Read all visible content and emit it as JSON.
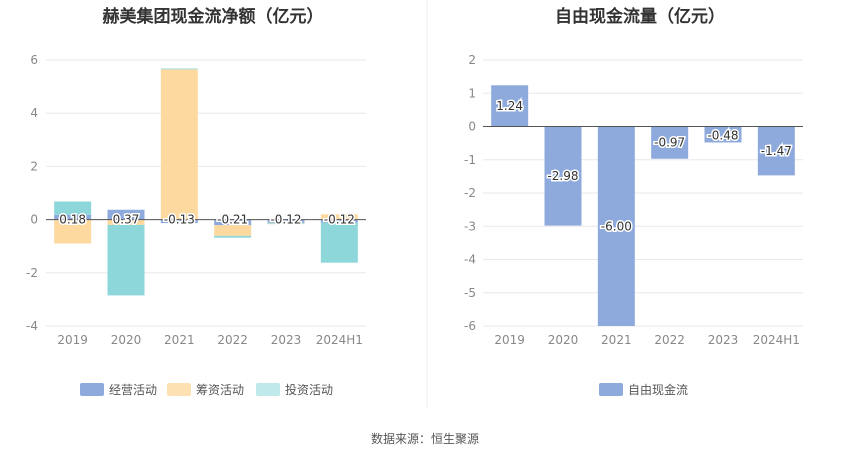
{
  "source_text": "数据来源：恒生聚源",
  "colors": {
    "operating": "#8eaadc",
    "financing": "#fdd9a0",
    "investing": "#8dd7da",
    "fcf": "#8eaadc",
    "grid": "#e8e8ee",
    "axis_text": "#888888",
    "title": "#333333",
    "divider": "#eeeeee"
  },
  "chart_data": [
    {
      "type": "bar",
      "title": "赫美集团现金流净额（亿元）",
      "categories": [
        "2019",
        "2020",
        "2021",
        "2022",
        "2023",
        "2024H1"
      ],
      "ylim": [
        -4,
        6
      ],
      "yticks": [
        -4,
        -2,
        0,
        2,
        4,
        6
      ],
      "grid": true,
      "legend_position": "bottom",
      "series": [
        {
          "name": "经营活动",
          "key": "operating",
          "values": [
            0.18,
            0.37,
            -0.13,
            -0.21,
            -0.12,
            -0.12
          ]
        },
        {
          "name": "筹资活动",
          "key": "financing",
          "values": [
            -0.9,
            -0.2,
            5.65,
            -0.4,
            -0.02,
            0.2
          ]
        },
        {
          "name": "投资活动",
          "key": "investing",
          "values": [
            0.5,
            -2.65,
            0.03,
            -0.07,
            -0.03,
            -1.5
          ]
        }
      ],
      "data_labels": [
        "0.18",
        "0.37",
        "-0.13",
        "-0.21",
        "-0.12",
        "-0.12"
      ]
    },
    {
      "type": "bar",
      "title": "自由现金流量（亿元）",
      "categories": [
        "2019",
        "2020",
        "2021",
        "2022",
        "2023",
        "2024H1"
      ],
      "ylim": [
        -6,
        2
      ],
      "yticks": [
        -6,
        -5,
        -4,
        -3,
        -2,
        -1,
        0,
        1,
        2
      ],
      "grid": true,
      "legend_position": "bottom",
      "series": [
        {
          "name": "自由现金流",
          "key": "fcf",
          "values": [
            1.24,
            -2.98,
            -6.0,
            -0.97,
            -0.48,
            -1.47
          ]
        }
      ],
      "data_labels": [
        "1.24",
        "-2.98",
        "-6.00",
        "-0.97",
        "-0.48",
        "-1.47"
      ]
    }
  ]
}
